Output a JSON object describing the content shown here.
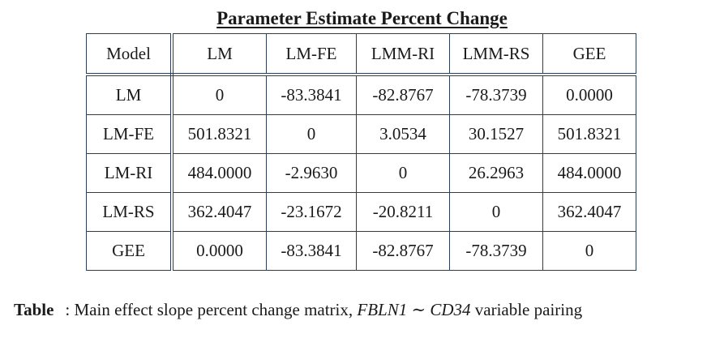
{
  "table": {
    "title": "Parameter Estimate Percent Change",
    "column_headers": [
      "Model",
      "LM",
      "LM-FE",
      "LMM-RI",
      "LMM-RS",
      "GEE"
    ],
    "rows": [
      {
        "label": "LM",
        "values": [
          "0",
          "-83.3841",
          "-82.8767",
          "-78.3739",
          "0.0000"
        ]
      },
      {
        "label": "LM-FE",
        "values": [
          "501.8321",
          "0",
          "3.0534",
          "30.1527",
          "501.8321"
        ]
      },
      {
        "label": "LM-RI",
        "values": [
          "484.0000",
          "-2.9630",
          "0",
          "26.2963",
          "484.0000"
        ]
      },
      {
        "label": "LM-RS",
        "values": [
          "362.4047",
          "-23.1672",
          "-20.8211",
          "0",
          "362.4047"
        ]
      },
      {
        "label": "GEE",
        "values": [
          "0.0000",
          "-83.3841",
          "-82.8767",
          "-78.3739",
          "0"
        ]
      }
    ]
  },
  "caption": {
    "label": "Table",
    "text_before": ": Main effect slope percent change matrix, ",
    "math": "FBLN1 ∼ CD34",
    "text_after": " variable pairing"
  }
}
